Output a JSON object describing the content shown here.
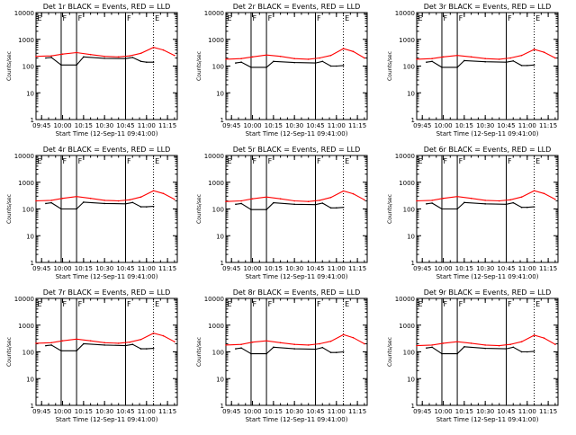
{
  "figure": {
    "colors": {
      "events": "#000000",
      "lld": "#ff0000",
      "axes": "#000000",
      "background": "#ffffff"
    }
  },
  "chart_data": [
    {
      "type": "line",
      "title": "Det 1r BLACK = Events, RED = LLD",
      "xlabel": "Start Time (12-Sep-11 09:41:00)",
      "ylabel": "Counts/sec",
      "yscale": "log",
      "ylim": [
        1,
        10000
      ],
      "xlim": [
        "09:41",
        "11:22"
      ],
      "xticks": [
        "09:45",
        "10:00",
        "10:15",
        "10:30",
        "10:45",
        "11:00",
        "11:15"
      ],
      "yticks": [
        "1",
        "10",
        "100",
        "1000",
        "10000"
      ],
      "markers": [
        {
          "time": "09:41",
          "label": "E"
        },
        {
          "time": "09:59",
          "label": "F"
        },
        {
          "time": "10:10",
          "label": "F"
        },
        {
          "time": "10:45",
          "label": "F"
        },
        {
          "time": "11:05",
          "label": "E"
        }
      ],
      "series": [
        {
          "name": "Events",
          "color": "#000000",
          "x": [
            "09:48",
            "09:52",
            "09:59",
            "10:10",
            "10:15",
            "10:30",
            "10:45",
            "10:50",
            "10:56",
            "11:00",
            "11:05"
          ],
          "y": [
            200,
            210,
            110,
            110,
            220,
            195,
            190,
            210,
            150,
            140,
            140
          ]
        },
        {
          "name": "LLD",
          "color": "#ff0000",
          "x": [
            "09:41",
            "09:52",
            "10:00",
            "10:10",
            "10:20",
            "10:30",
            "10:40",
            "10:48",
            "10:56",
            "11:05",
            "11:12",
            "11:20"
          ],
          "y": [
            230,
            240,
            280,
            320,
            270,
            230,
            220,
            240,
            300,
            500,
            400,
            250
          ]
        }
      ]
    },
    {
      "type": "line",
      "title": "Det 2r BLACK = Events, RED = LLD",
      "xlabel": "Start Time (12-Sep-11 09:41:00)",
      "ylabel": "Counts/sec",
      "yscale": "log",
      "ylim": [
        1,
        10000
      ],
      "xlim": [
        "09:41",
        "11:22"
      ],
      "xticks": [
        "09:45",
        "10:00",
        "10:15",
        "10:30",
        "10:45",
        "11:00",
        "11:15"
      ],
      "yticks": [
        "1",
        "10",
        "100",
        "1000",
        "10000"
      ],
      "markers": [
        {
          "time": "09:41",
          "label": "E"
        },
        {
          "time": "09:59",
          "label": "F"
        },
        {
          "time": "10:10",
          "label": "F"
        },
        {
          "time": "10:45",
          "label": "F"
        },
        {
          "time": "11:05",
          "label": "E"
        }
      ],
      "series": [
        {
          "name": "Events",
          "color": "#000000",
          "x": [
            "09:48",
            "09:52",
            "09:59",
            "10:10",
            "10:15",
            "10:30",
            "10:45",
            "10:50",
            "10:56",
            "11:00",
            "11:05"
          ],
          "y": [
            130,
            140,
            90,
            90,
            150,
            135,
            130,
            150,
            100,
            100,
            105
          ]
        },
        {
          "name": "LLD",
          "color": "#ff0000",
          "x": [
            "09:41",
            "09:52",
            "10:00",
            "10:10",
            "10:20",
            "10:30",
            "10:40",
            "10:48",
            "10:56",
            "11:05",
            "11:12",
            "11:20"
          ],
          "y": [
            180,
            190,
            220,
            260,
            230,
            190,
            180,
            200,
            250,
            450,
            350,
            200
          ]
        }
      ]
    },
    {
      "type": "line",
      "title": "Det 3r BLACK = Events, RED = LLD",
      "xlabel": "Start Time (12-Sep-11 09:41:00)",
      "ylabel": "Counts/sec",
      "yscale": "log",
      "ylim": [
        1,
        10000
      ],
      "xlim": [
        "09:41",
        "11:22"
      ],
      "xticks": [
        "09:45",
        "10:00",
        "10:15",
        "10:30",
        "10:45",
        "11:00",
        "11:15"
      ],
      "yticks": [
        "1",
        "10",
        "100",
        "1000",
        "10000"
      ],
      "markers": [
        {
          "time": "09:41",
          "label": "E"
        },
        {
          "time": "09:59",
          "label": "F"
        },
        {
          "time": "10:10",
          "label": "F"
        },
        {
          "time": "10:45",
          "label": "F"
        },
        {
          "time": "11:05",
          "label": "E"
        }
      ],
      "series": [
        {
          "name": "Events",
          "color": "#000000",
          "x": [
            "09:48",
            "09:52",
            "09:59",
            "10:10",
            "10:15",
            "10:30",
            "10:45",
            "10:50",
            "10:56",
            "11:00",
            "11:05"
          ],
          "y": [
            140,
            150,
            90,
            90,
            160,
            145,
            140,
            155,
            105,
            105,
            110
          ]
        },
        {
          "name": "LLD",
          "color": "#ff0000",
          "x": [
            "09:41",
            "09:52",
            "10:00",
            "10:10",
            "10:20",
            "10:30",
            "10:40",
            "10:48",
            "10:56",
            "11:05",
            "11:12",
            "11:20"
          ],
          "y": [
            180,
            190,
            220,
            250,
            220,
            190,
            180,
            200,
            250,
            420,
            330,
            200
          ]
        }
      ]
    },
    {
      "type": "line",
      "title": "Det 4r BLACK = Events, RED = LLD",
      "xlabel": "Start Time (12-Sep-11 09:41:00)",
      "ylabel": "Counts/sec",
      "yscale": "log",
      "ylim": [
        1,
        10000
      ],
      "xlim": [
        "09:41",
        "11:22"
      ],
      "xticks": [
        "09:45",
        "10:00",
        "10:15",
        "10:30",
        "10:45",
        "11:00",
        "11:15"
      ],
      "yticks": [
        "1",
        "10",
        "100",
        "1000",
        "10000"
      ],
      "markers": [
        {
          "time": "09:41",
          "label": "E"
        },
        {
          "time": "09:59",
          "label": "F"
        },
        {
          "time": "10:10",
          "label": "F"
        },
        {
          "time": "10:45",
          "label": "F"
        },
        {
          "time": "11:05",
          "label": "E"
        }
      ],
      "series": [
        {
          "name": "Events",
          "color": "#000000",
          "x": [
            "09:48",
            "09:52",
            "09:59",
            "10:10",
            "10:15",
            "10:30",
            "10:45",
            "10:50",
            "10:56",
            "11:00",
            "11:05"
          ],
          "y": [
            160,
            170,
            100,
            100,
            180,
            160,
            155,
            175,
            120,
            120,
            125
          ]
        },
        {
          "name": "LLD",
          "color": "#ff0000",
          "x": [
            "09:41",
            "09:52",
            "10:00",
            "10:10",
            "10:20",
            "10:30",
            "10:40",
            "10:48",
            "10:56",
            "11:05",
            "11:12",
            "11:20"
          ],
          "y": [
            200,
            210,
            250,
            290,
            250,
            210,
            200,
            220,
            280,
            480,
            380,
            230
          ]
        }
      ]
    },
    {
      "type": "line",
      "title": "Det 5r BLACK = Events, RED = LLD",
      "xlabel": "Start Time (12-Sep-11 09:41:00)",
      "ylabel": "Counts/sec",
      "yscale": "log",
      "ylim": [
        1,
        10000
      ],
      "xlim": [
        "09:41",
        "11:22"
      ],
      "xticks": [
        "09:45",
        "10:00",
        "10:15",
        "10:30",
        "10:45",
        "11:00",
        "11:15"
      ],
      "yticks": [
        "1",
        "10",
        "100",
        "1000",
        "10000"
      ],
      "markers": [
        {
          "time": "09:41",
          "label": "E"
        },
        {
          "time": "09:59",
          "label": "F"
        },
        {
          "time": "10:10",
          "label": "F"
        },
        {
          "time": "10:45",
          "label": "F"
        },
        {
          "time": "11:05",
          "label": "E"
        }
      ],
      "series": [
        {
          "name": "Events",
          "color": "#000000",
          "x": [
            "09:48",
            "09:52",
            "09:59",
            "10:10",
            "10:15",
            "10:30",
            "10:45",
            "10:50",
            "10:56",
            "11:00",
            "11:05"
          ],
          "y": [
            150,
            160,
            95,
            95,
            170,
            150,
            145,
            165,
            110,
            110,
            115
          ]
        },
        {
          "name": "LLD",
          "color": "#ff0000",
          "x": [
            "09:41",
            "09:52",
            "10:00",
            "10:10",
            "10:20",
            "10:30",
            "10:40",
            "10:48",
            "10:56",
            "11:05",
            "11:12",
            "11:20"
          ],
          "y": [
            190,
            200,
            240,
            280,
            240,
            200,
            190,
            210,
            270,
            470,
            370,
            220
          ]
        }
      ]
    },
    {
      "type": "line",
      "title": "Det 6r BLACK = Events, RED = LLD",
      "xlabel": "Start Time (12-Sep-11 09:41:00)",
      "ylabel": "Counts/sec",
      "yscale": "log",
      "ylim": [
        1,
        10000
      ],
      "xlim": [
        "09:41",
        "11:22"
      ],
      "xticks": [
        "09:45",
        "10:00",
        "10:15",
        "10:30",
        "10:45",
        "11:00",
        "11:15"
      ],
      "yticks": [
        "1",
        "10",
        "100",
        "1000",
        "10000"
      ],
      "markers": [
        {
          "time": "09:41",
          "label": "E"
        },
        {
          "time": "09:59",
          "label": "F"
        },
        {
          "time": "10:10",
          "label": "F"
        },
        {
          "time": "10:45",
          "label": "F"
        },
        {
          "time": "11:05",
          "label": "E"
        }
      ],
      "series": [
        {
          "name": "Events",
          "color": "#000000",
          "x": [
            "09:48",
            "09:52",
            "09:59",
            "10:10",
            "10:15",
            "10:30",
            "10:45",
            "10:50",
            "10:56",
            "11:00",
            "11:05"
          ],
          "y": [
            155,
            165,
            100,
            100,
            175,
            155,
            150,
            170,
            115,
            115,
            120
          ]
        },
        {
          "name": "LLD",
          "color": "#ff0000",
          "x": [
            "09:41",
            "09:52",
            "10:00",
            "10:10",
            "10:20",
            "10:30",
            "10:40",
            "10:48",
            "10:56",
            "11:05",
            "11:12",
            "11:20"
          ],
          "y": [
            200,
            210,
            250,
            290,
            250,
            210,
            200,
            220,
            280,
            480,
            380,
            230
          ]
        }
      ]
    },
    {
      "type": "line",
      "title": "Det 7r BLACK = Events, RED = LLD",
      "xlabel": "Start Time (12-Sep-11 09:41:00)",
      "ylabel": "Counts/sec",
      "yscale": "log",
      "ylim": [
        1,
        10000
      ],
      "xlim": [
        "09:41",
        "11:22"
      ],
      "xticks": [
        "09:45",
        "10:00",
        "10:15",
        "10:30",
        "10:45",
        "11:00",
        "11:15"
      ],
      "yticks": [
        "1",
        "10",
        "100",
        "1000",
        "10000"
      ],
      "markers": [
        {
          "time": "09:41",
          "label": "E"
        },
        {
          "time": "09:59",
          "label": "F"
        },
        {
          "time": "10:10",
          "label": "F"
        },
        {
          "time": "10:45",
          "label": "F"
        },
        {
          "time": "11:05",
          "label": "E"
        }
      ],
      "series": [
        {
          "name": "Events",
          "color": "#000000",
          "x": [
            "09:48",
            "09:52",
            "09:59",
            "10:10",
            "10:15",
            "10:30",
            "10:45",
            "10:50",
            "10:56",
            "11:00",
            "11:05"
          ],
          "y": [
            170,
            180,
            110,
            110,
            200,
            180,
            170,
            190,
            130,
            130,
            135
          ]
        },
        {
          "name": "LLD",
          "color": "#ff0000",
          "x": [
            "09:41",
            "09:52",
            "10:00",
            "10:10",
            "10:20",
            "10:30",
            "10:40",
            "10:48",
            "10:56",
            "11:05",
            "11:12",
            "11:20"
          ],
          "y": [
            210,
            220,
            260,
            300,
            260,
            220,
            210,
            230,
            290,
            500,
            400,
            240
          ]
        }
      ]
    },
    {
      "type": "line",
      "title": "Det 8r BLACK = Events, RED = LLD",
      "xlabel": "Start Time (12-Sep-11 09:41:00)",
      "ylabel": "Counts/sec",
      "yscale": "log",
      "ylim": [
        1,
        10000
      ],
      "xlim": [
        "09:41",
        "11:22"
      ],
      "xticks": [
        "09:45",
        "10:00",
        "10:15",
        "10:30",
        "10:45",
        "11:00",
        "11:15"
      ],
      "yticks": [
        "1",
        "10",
        "100",
        "1000",
        "10000"
      ],
      "markers": [
        {
          "time": "09:41",
          "label": "E"
        },
        {
          "time": "09:59",
          "label": "F"
        },
        {
          "time": "10:10",
          "label": "F"
        },
        {
          "time": "10:45",
          "label": "F"
        },
        {
          "time": "11:05",
          "label": "E"
        }
      ],
      "series": [
        {
          "name": "Events",
          "color": "#000000",
          "x": [
            "09:48",
            "09:52",
            "09:59",
            "10:10",
            "10:15",
            "10:30",
            "10:45",
            "10:50",
            "10:56",
            "11:00",
            "11:05"
          ],
          "y": [
            130,
            140,
            85,
            85,
            150,
            130,
            125,
            145,
            95,
            95,
            100
          ]
        },
        {
          "name": "LLD",
          "color": "#ff0000",
          "x": [
            "09:41",
            "09:52",
            "10:00",
            "10:10",
            "10:20",
            "10:30",
            "10:40",
            "10:48",
            "10:56",
            "11:05",
            "11:12",
            "11:20"
          ],
          "y": [
            180,
            190,
            230,
            260,
            220,
            190,
            180,
            200,
            250,
            440,
            340,
            200
          ]
        }
      ]
    },
    {
      "type": "line",
      "title": "Det 9r BLACK = Events, RED = LLD",
      "xlabel": "Start Time (12-Sep-11 09:41:00)",
      "ylabel": "Counts/sec",
      "yscale": "log",
      "ylim": [
        1,
        10000
      ],
      "xlim": [
        "09:41",
        "11:22"
      ],
      "xticks": [
        "09:45",
        "10:00",
        "10:15",
        "10:30",
        "10:45",
        "11:00",
        "11:15"
      ],
      "yticks": [
        "1",
        "10",
        "100",
        "1000",
        "10000"
      ],
      "markers": [
        {
          "time": "09:41",
          "label": "E"
        },
        {
          "time": "09:59",
          "label": "F"
        },
        {
          "time": "10:10",
          "label": "F"
        },
        {
          "time": "10:45",
          "label": "F"
        },
        {
          "time": "11:05",
          "label": "E"
        }
      ],
      "series": [
        {
          "name": "Events",
          "color": "#000000",
          "x": [
            "09:48",
            "09:52",
            "09:59",
            "10:10",
            "10:15",
            "10:30",
            "10:45",
            "10:50",
            "10:56",
            "11:00",
            "11:05"
          ],
          "y": [
            140,
            150,
            85,
            85,
            155,
            135,
            130,
            150,
            100,
            100,
            105
          ]
        },
        {
          "name": "LLD",
          "color": "#ff0000",
          "x": [
            "09:41",
            "09:52",
            "10:00",
            "10:10",
            "10:20",
            "10:30",
            "10:40",
            "10:48",
            "10:56",
            "11:05",
            "11:12",
            "11:20"
          ],
          "y": [
            170,
            180,
            210,
            240,
            210,
            180,
            170,
            190,
            240,
            420,
            330,
            190
          ]
        }
      ]
    }
  ]
}
